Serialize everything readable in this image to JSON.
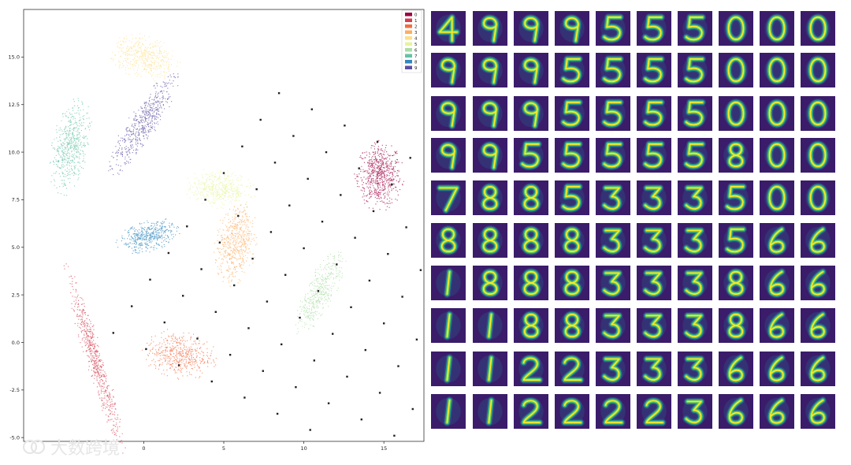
{
  "watermark": {
    "text": "大数跨境"
  },
  "chart_data": [
    {
      "type": "scatter",
      "title": "",
      "xlabel": "",
      "ylabel": "",
      "xlim": [
        -7.5,
        17.5
      ],
      "ylim": [
        -5.2,
        17.5
      ],
      "xticks": [
        "0",
        "5",
        "10",
        "15"
      ],
      "xtick_values": [
        0,
        5,
        10,
        15
      ],
      "yticks": [
        "-5.0",
        "-2.5",
        "0.0",
        "2.5",
        "5.0",
        "7.5",
        "10.0",
        "12.5",
        "15.0"
      ],
      "ytick_values": [
        -5,
        -2.5,
        0,
        2.5,
        5,
        7.5,
        10,
        12.5,
        15
      ],
      "legend": {
        "placement": "top-right",
        "labels": [
          "0",
          "1",
          "2",
          "3",
          "4",
          "5",
          "6",
          "7",
          "8",
          "9"
        ],
        "colors": [
          "#9e0142",
          "#d53e4f",
          "#f46d43",
          "#fdae61",
          "#fee08b",
          "#e6f598",
          "#abdda4",
          "#66c2a5",
          "#3288bd",
          "#5e4fa2"
        ]
      },
      "grid": false,
      "series": [
        {
          "name": "0",
          "color": "#9e0142",
          "clusters": [
            {
              "cx": 14.7,
              "cy": 8.8,
              "rx": 1.5,
              "ry": 1.8,
              "angle": 0,
              "n": 650
            }
          ]
        },
        {
          "name": "1",
          "color": "#d53e4f",
          "clusters": [
            {
              "cx": -3.1,
              "cy": -0.8,
              "rx": 5.2,
              "ry": 0.55,
              "angle": -70,
              "n": 600
            }
          ]
        },
        {
          "name": "2",
          "color": "#f46d43",
          "clusters": [
            {
              "cx": 2.2,
              "cy": -0.6,
              "rx": 2.3,
              "ry": 1.25,
              "angle": -8,
              "n": 500
            }
          ]
        },
        {
          "name": "3",
          "color": "#fdae61",
          "clusters": [
            {
              "cx": 5.7,
              "cy": 5.2,
              "rx": 2.2,
              "ry": 1.3,
              "angle": 80,
              "n": 550
            }
          ]
        },
        {
          "name": "4",
          "color": "#fee08b",
          "clusters": [
            {
              "cx": 0.0,
              "cy": 15.0,
              "rx": 2.2,
              "ry": 1.2,
              "angle": -12,
              "n": 450
            }
          ]
        },
        {
          "name": "5",
          "color": "#e6f598",
          "clusters": [
            {
              "cx": 4.7,
              "cy": 8.1,
              "rx": 2.2,
              "ry": 1.0,
              "angle": -5,
              "n": 450
            }
          ]
        },
        {
          "name": "6",
          "color": "#abdda4",
          "clusters": [
            {
              "cx": 11.0,
              "cy": 2.7,
              "rx": 2.6,
              "ry": 0.85,
              "angle": 58,
              "n": 450
            }
          ]
        },
        {
          "name": "7",
          "color": "#66c2a5",
          "clusters": [
            {
              "cx": -4.6,
              "cy": 10.3,
              "rx": 2.6,
              "ry": 1.15,
              "angle": 75,
              "n": 550
            }
          ]
        },
        {
          "name": "8",
          "color": "#3288bd",
          "clusters": [
            {
              "cx": 0.3,
              "cy": 5.6,
              "rx": 2.0,
              "ry": 0.8,
              "angle": 12,
              "n": 450
            }
          ]
        },
        {
          "name": "9",
          "color": "#5e4fa2",
          "clusters": [
            {
              "cx": -0.1,
              "cy": 11.5,
              "rx": 3.4,
              "ry": 0.85,
              "angle": 52,
              "n": 550
            }
          ]
        }
      ],
      "grid_markers": {
        "color": "#222222",
        "origin": [
          -1.9,
          0.5
        ],
        "step_u": [
          2.05,
          -0.85
        ],
        "step_v": [
          1.15,
          1.4
        ],
        "rows": 10,
        "cols": 10
      }
    },
    {
      "type": "heatmap",
      "title": "",
      "colormap": "viridis",
      "rows": 10,
      "cols": 10,
      "digits": [
        [
          "4",
          "9",
          "9",
          "9",
          "5",
          "5",
          "5",
          "0",
          "0",
          "0"
        ],
        [
          "9",
          "9",
          "9",
          "5",
          "5",
          "5",
          "5",
          "0",
          "0",
          "0"
        ],
        [
          "9",
          "9",
          "9",
          "5",
          "5",
          "5",
          "5",
          "0",
          "0",
          "0"
        ],
        [
          "9",
          "9",
          "5",
          "5",
          "5",
          "5",
          "5",
          "8",
          "0",
          "0"
        ],
        [
          "7",
          "8",
          "8",
          "5",
          "3",
          "3",
          "3",
          "5",
          "0",
          "0"
        ],
        [
          "8",
          "8",
          "8",
          "8",
          "3",
          "3",
          "3",
          "5",
          "6",
          "6"
        ],
        [
          "1",
          "8",
          "8",
          "8",
          "3",
          "3",
          "3",
          "8",
          "6",
          "6"
        ],
        [
          "1",
          "1",
          "8",
          "8",
          "3",
          "3",
          "3",
          "8",
          "6",
          "6"
        ],
        [
          "1",
          "1",
          "2",
          "2",
          "3",
          "3",
          "3",
          "6",
          "6",
          "6"
        ],
        [
          "1",
          "1",
          "2",
          "2",
          "2",
          "2",
          "3",
          "6",
          "6",
          "6"
        ]
      ]
    }
  ]
}
